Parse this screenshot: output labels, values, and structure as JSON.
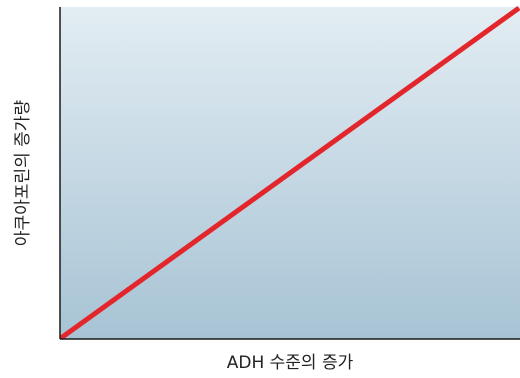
{
  "colors": {
    "plot_bg_top": "#e3edf3",
    "plot_bg_bottom": "#a7c3d4",
    "axis": "#1a1a1a",
    "series_line": "#e3262b"
  },
  "chart_data": {
    "type": "line",
    "title": "",
    "xlabel": "ADH 수준의 증가",
    "ylabel": "아쿠아포린의 증가량",
    "xlim": [
      0,
      1
    ],
    "ylim": [
      0,
      1
    ],
    "grid": false,
    "legend": "none",
    "series": [
      {
        "x": [
          0,
          1
        ],
        "y": [
          0,
          1
        ]
      }
    ]
  }
}
